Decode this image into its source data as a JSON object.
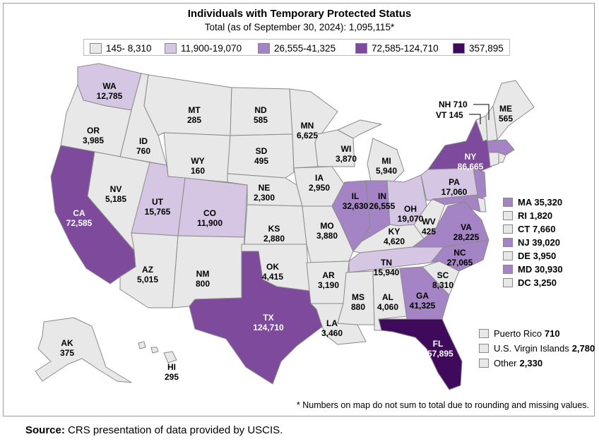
{
  "title": "Individuals with Temporary Protected Status",
  "subtitle": "Total (as of September 30, 2024): 1,095,115*",
  "legend": [
    {
      "label": "145- 8,310",
      "color": "#e8e8e8"
    },
    {
      "label": "11,900-19,070",
      "color": "#d5c7e3"
    },
    {
      "label": "26,555-41,325",
      "color": "#a484c4"
    },
    {
      "label": "72,585-124,710",
      "color": "#7d4a9c"
    },
    {
      "label": "357,895",
      "color": "#3f0a5c"
    }
  ],
  "states": [
    {
      "abbr": "WA",
      "value": "12,785",
      "bin": 1
    },
    {
      "abbr": "OR",
      "value": "3,985",
      "bin": 0
    },
    {
      "abbr": "CA",
      "value": "72,585",
      "bin": 3
    },
    {
      "abbr": "ID",
      "value": "760",
      "bin": 0
    },
    {
      "abbr": "NV",
      "value": "5,185",
      "bin": 0
    },
    {
      "abbr": "MT",
      "value": "285",
      "bin": 0
    },
    {
      "abbr": "WY",
      "value": "160",
      "bin": 0
    },
    {
      "abbr": "UT",
      "value": "15,765",
      "bin": 1
    },
    {
      "abbr": "AZ",
      "value": "5,015",
      "bin": 0
    },
    {
      "abbr": "CO",
      "value": "11,900",
      "bin": 1
    },
    {
      "abbr": "NM",
      "value": "800",
      "bin": 0
    },
    {
      "abbr": "ND",
      "value": "585",
      "bin": 0
    },
    {
      "abbr": "SD",
      "value": "495",
      "bin": 0
    },
    {
      "abbr": "NE",
      "value": "2,300",
      "bin": 0
    },
    {
      "abbr": "KS",
      "value": "2,880",
      "bin": 0
    },
    {
      "abbr": "OK",
      "value": "4,415",
      "bin": 0
    },
    {
      "abbr": "TX",
      "value": "124,710",
      "bin": 3
    },
    {
      "abbr": "MN",
      "value": "6,625",
      "bin": 0
    },
    {
      "abbr": "IA",
      "value": "2,950",
      "bin": 0
    },
    {
      "abbr": "MO",
      "value": "3,880",
      "bin": 0
    },
    {
      "abbr": "AR",
      "value": "3,190",
      "bin": 0
    },
    {
      "abbr": "LA",
      "value": "3,460",
      "bin": 0
    },
    {
      "abbr": "WI",
      "value": "3,870",
      "bin": 0
    },
    {
      "abbr": "IL",
      "value": "32,630",
      "bin": 2
    },
    {
      "abbr": "MI",
      "value": "5,940",
      "bin": 0
    },
    {
      "abbr": "IN",
      "value": "26,555",
      "bin": 2
    },
    {
      "abbr": "OH",
      "value": "19,070",
      "bin": 1
    },
    {
      "abbr": "KY",
      "value": "4,620",
      "bin": 0
    },
    {
      "abbr": "TN",
      "value": "15,940",
      "bin": 1
    },
    {
      "abbr": "MS",
      "value": "880",
      "bin": 0
    },
    {
      "abbr": "AL",
      "value": "4,060",
      "bin": 0
    },
    {
      "abbr": "GA",
      "value": "41,325",
      "bin": 2
    },
    {
      "abbr": "FL",
      "value": "357,895",
      "bin": 4
    },
    {
      "abbr": "SC",
      "value": "8,310",
      "bin": 0
    },
    {
      "abbr": "NC",
      "value": "27,065",
      "bin": 2
    },
    {
      "abbr": "VA",
      "value": "28,225",
      "bin": 2
    },
    {
      "abbr": "WV",
      "value": "425",
      "bin": 0
    },
    {
      "abbr": "PA",
      "value": "17,060",
      "bin": 1
    },
    {
      "abbr": "NY",
      "value": "86,665",
      "bin": 3
    },
    {
      "abbr": "ME",
      "value": "565",
      "bin": 0
    },
    {
      "abbr": "AK",
      "value": "375",
      "bin": 0
    },
    {
      "abbr": "HI",
      "value": "295",
      "bin": 0
    }
  ],
  "callouts": [
    {
      "text": "NH 710",
      "bin": 0
    },
    {
      "text": "VT 145",
      "bin": 0
    }
  ],
  "small_states": [
    {
      "text": "MA 35,320",
      "bin": 2
    },
    {
      "text": "RI 1,820",
      "bin": 0
    },
    {
      "text": "CT 7,660",
      "bin": 0
    },
    {
      "text": "NJ 39,020",
      "bin": 2
    },
    {
      "text": "DE 3,950",
      "bin": 0
    },
    {
      "text": "MD 30,930",
      "bin": 2
    },
    {
      "text": "DC 3,250",
      "bin": 0
    }
  ],
  "territories": [
    {
      "name": "Puerto Rico",
      "value": "710",
      "bin": 0
    },
    {
      "name": "U.S. Virgin Islands",
      "value": "2,780",
      "bin": 0
    },
    {
      "name": "Other",
      "value": "2,330",
      "bin": 0
    }
  ],
  "footnote": "* Numbers on map do not sum to total due to rounding and missing values.",
  "source_label": "Source:",
  "source_text": " CRS presentation of data provided by USCIS."
}
